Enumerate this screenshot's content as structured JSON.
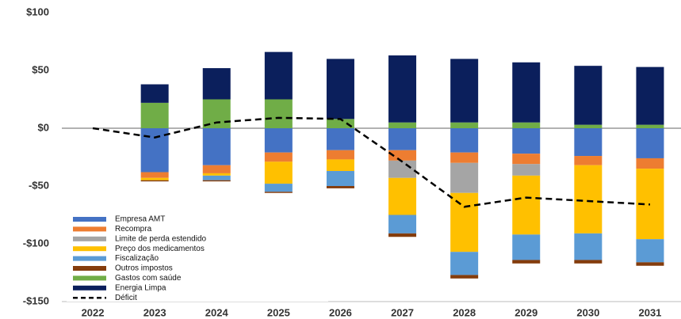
{
  "chart_data": {
    "type": "stacked-bar-line",
    "categories": [
      "2022",
      "2023",
      "2024",
      "2025",
      "2026",
      "2027",
      "2028",
      "2029",
      "2030",
      "2031"
    ],
    "series": [
      {
        "name": "Empresa AMT",
        "color": "#4472c4",
        "values": [
          0,
          -38,
          -32,
          -21,
          -19,
          -19,
          -21,
          -22,
          -24,
          -26
        ]
      },
      {
        "name": "Recompra",
        "color": "#ed7d31",
        "values": [
          0,
          -5,
          -7,
          -8,
          -8,
          -9,
          -9,
          -9,
          -8,
          -9
        ]
      },
      {
        "name": "Limite de perda estendido",
        "color": "#a5a5a5",
        "values": [
          0,
          0,
          0,
          0,
          0,
          -15,
          -26,
          -10,
          0,
          0
        ]
      },
      {
        "name": "Preço dos medicamentos",
        "color": "#ffc000",
        "values": [
          0,
          -2,
          -2,
          -19,
          -10,
          -32,
          -51,
          -51,
          -59,
          -61
        ]
      },
      {
        "name": "Fiscalização",
        "color": "#5b9bd5",
        "values": [
          0,
          0,
          -4,
          -7,
          -13,
          -16,
          -20,
          -22,
          -23,
          -20
        ]
      },
      {
        "name": "Outros impostos",
        "color": "#843c0c",
        "values": [
          0,
          -1,
          -1,
          -1,
          -2,
          -3,
          -3,
          -3,
          -3,
          -3
        ]
      },
      {
        "name": "Gastos com saúde",
        "color": "#70ad47",
        "values": [
          0,
          22,
          25,
          25,
          8,
          5,
          5,
          5,
          3,
          3
        ]
      },
      {
        "name": "Energia Limpa",
        "color": "#0b1f5c",
        "values": [
          0,
          16,
          27,
          41,
          52,
          58,
          55,
          52,
          51,
          50
        ]
      }
    ],
    "line": {
      "name": "Déficit",
      "color": "#000000",
      "values": [
        0,
        -8,
        5,
        9,
        8,
        -29,
        -68,
        -60,
        -63,
        -66
      ]
    },
    "ylim": [
      -150,
      100
    ],
    "yticks": [
      {
        "value": -150,
        "label": "-$150"
      },
      {
        "value": -100,
        "label": "-$100"
      },
      {
        "value": -50,
        "label": "-$50"
      },
      {
        "value": 0,
        "label": "$0"
      },
      {
        "value": 50,
        "label": "$50"
      },
      {
        "value": 100,
        "label": "$100"
      }
    ]
  }
}
